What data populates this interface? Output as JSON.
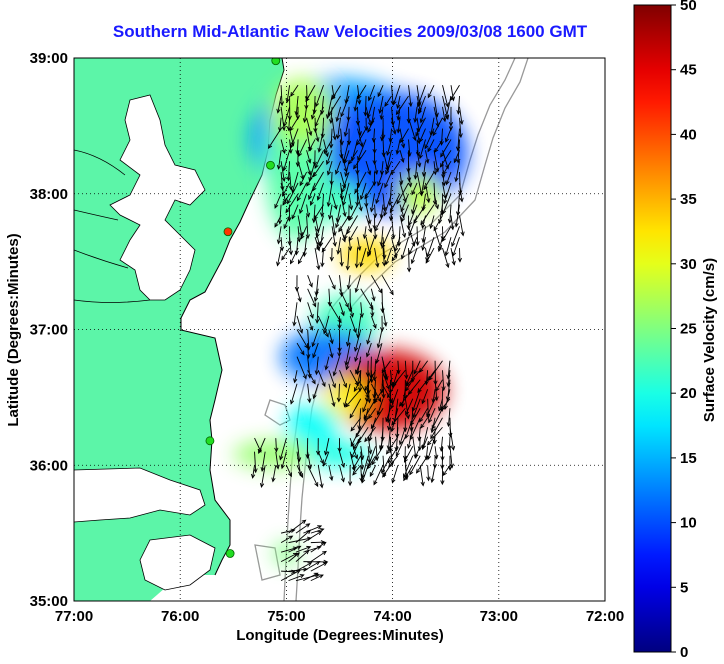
{
  "title": "Southern Mid-Atlantic Raw Velocities 2009/03/08 1600 GMT",
  "xlabel": "Longitude (Degrees:Minutes)",
  "ylabel": "Latitude (Degrees:Minutes)",
  "colorbar": {
    "label": "Surface Velocity (cm/s)",
    "min": 0,
    "max": 50,
    "ticks": [
      "0",
      "5",
      "10",
      "15",
      "20",
      "25",
      "30",
      "35",
      "40",
      "45",
      "50"
    ]
  },
  "axes": {
    "xlim": [
      -77,
      -72
    ],
    "ylim": [
      35,
      39
    ],
    "xticks": [
      {
        "value": -77,
        "label": "77:00"
      },
      {
        "value": -76,
        "label": "76:00"
      },
      {
        "value": -75,
        "label": "75:00"
      },
      {
        "value": -74,
        "label": "74:00"
      },
      {
        "value": -73,
        "label": "73:00"
      },
      {
        "value": -72,
        "label": "72:00"
      }
    ],
    "yticks": [
      {
        "value": 35,
        "label": "35:00"
      },
      {
        "value": 36,
        "label": "36:00"
      },
      {
        "value": 37,
        "label": "37:00"
      },
      {
        "value": 38,
        "label": "38:00"
      },
      {
        "value": 39,
        "label": "39:00"
      }
    ],
    "grid": "dotted"
  },
  "colors": {
    "land": "#5cf5a8",
    "water": "#ffffff",
    "coastline": "#000000",
    "bathymetry": "#999999",
    "station": "#22dd22",
    "station_alt": "#ff3300",
    "arrows": "#000000",
    "title": "#1a1aff"
  },
  "stations": [
    {
      "lon": -75.1,
      "lat": 38.98,
      "color": "station"
    },
    {
      "lon": -75.15,
      "lat": 38.21,
      "color": "station"
    },
    {
      "lon": -75.55,
      "lat": 37.72,
      "color": "station_alt"
    },
    {
      "lon": -75.72,
      "lat": 36.18,
      "color": "station"
    },
    {
      "lon": -75.53,
      "lat": 35.35,
      "color": "station"
    }
  ],
  "velocity_patches": [
    {
      "lon": -74.5,
      "lat": 38.4,
      "speed": 14,
      "rlon": 0.85,
      "rlat": 0.45
    },
    {
      "lon": -74.0,
      "lat": 38.3,
      "speed": 10,
      "rlon": 0.7,
      "rlat": 0.45
    },
    {
      "lon": -74.9,
      "lat": 38.2,
      "speed": 23,
      "rlon": 0.3,
      "rlat": 0.55
    },
    {
      "lon": -74.85,
      "lat": 38.6,
      "speed": 27,
      "rlon": 0.3,
      "rlat": 0.25
    },
    {
      "lon": -74.55,
      "lat": 37.95,
      "speed": 22,
      "rlon": 0.25,
      "rlat": 0.15
    },
    {
      "lon": -73.75,
      "lat": 38.0,
      "speed": 28,
      "rlon": 0.2,
      "rlat": 0.15
    },
    {
      "lon": -74.25,
      "lat": 37.55,
      "speed": 33,
      "rlon": 0.25,
      "rlat": 0.12
    },
    {
      "lon": -74.45,
      "lat": 37.05,
      "speed": 22,
      "rlon": 0.3,
      "rlat": 0.2
    },
    {
      "lon": -74.6,
      "lat": 36.8,
      "speed": 12,
      "rlon": 0.45,
      "rlat": 0.2
    },
    {
      "lon": -74.05,
      "lat": 36.55,
      "speed": 46,
      "rlon": 0.55,
      "rlat": 0.3
    },
    {
      "lon": -74.45,
      "lat": 36.5,
      "speed": 32,
      "rlon": 0.2,
      "rlat": 0.15
    },
    {
      "lon": -74.75,
      "lat": 36.3,
      "speed": 19,
      "rlon": 0.25,
      "rlat": 0.15
    },
    {
      "lon": -75.1,
      "lat": 36.08,
      "speed": 26,
      "rlon": 0.4,
      "rlat": 0.1
    },
    {
      "lon": -74.5,
      "lat": 36.08,
      "speed": 20,
      "rlon": 0.3,
      "rlat": 0.1
    },
    {
      "lon": -75.0,
      "lat": 35.35,
      "speed": 25,
      "rlon": 0.12,
      "rlat": 0.08
    }
  ],
  "vector_field": [
    {
      "region": "north",
      "lon_range": [
        -75.05,
        -73.35
      ],
      "lat_range": [
        37.6,
        38.85
      ],
      "step": 0.08,
      "u": -0.15,
      "v": -1.0
    },
    {
      "region": "shelf-mid",
      "lon_range": [
        -74.9,
        -74.1
      ],
      "lat_range": [
        36.6,
        37.5
      ],
      "step": 0.1,
      "u": 0.1,
      "v": -1.0
    },
    {
      "region": "south-east",
      "lon_range": [
        -74.3,
        -73.4
      ],
      "lat_range": [
        36.0,
        36.8
      ],
      "step": 0.07,
      "u": -0.3,
      "v": -1.0
    },
    {
      "region": "south-west",
      "lon_range": [
        -75.3,
        -74.3
      ],
      "lat_range": [
        36.0,
        36.3
      ],
      "step": 0.1,
      "u": 0.0,
      "v": -1.0
    },
    {
      "region": "hatteras",
      "lon_range": [
        -75.05,
        -74.75
      ],
      "lat_range": [
        35.15,
        35.5
      ],
      "step": 0.07,
      "u": 1.0,
      "v": 0.4
    }
  ]
}
